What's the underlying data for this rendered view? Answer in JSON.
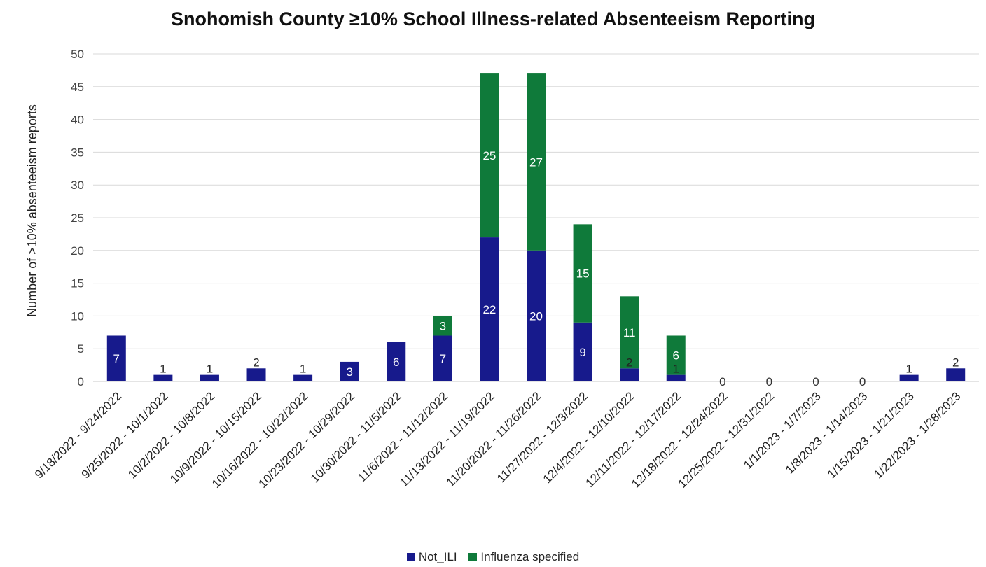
{
  "chart_data": {
    "type": "bar",
    "stacked": true,
    "title": "Snohomish County ≥10% School Illness-related Absenteeism Reporting",
    "xlabel": "",
    "ylabel": "Number of >10% absenteeism reports",
    "ylim": [
      0,
      50
    ],
    "ytick_step": 5,
    "grid": true,
    "legend_position": "bottom",
    "categories": [
      "9/18/2022 - 9/24/2022",
      "9/25/2022 - 10/1/2022",
      "10/2/2022 - 10/8/2022",
      "10/9/2022 - 10/15/2022",
      "10/16/2022 - 10/22/2022",
      "10/23/2022 - 10/29/2022",
      "10/30/2022 - 11/5/2022",
      "11/6/2022 - 11/12/2022",
      "11/13/2022 - 11/19/2022",
      "11/20/2022 - 11/26/2022",
      "11/27/2022 - 12/3/2022",
      "12/4/2022 - 12/10/2022",
      "12/11/2022 - 12/17/2022",
      "12/18/2022 - 12/24/2022",
      "12/25/2022 - 12/31/2022",
      "1/1/2023 - 1/7/2023",
      "1/8/2023 - 1/14/2023",
      "1/15/2023 - 1/21/2023",
      "1/22/2023 - 1/28/2023"
    ],
    "series": [
      {
        "name": "Not_ILI",
        "color": "#171a8c",
        "values": [
          7,
          1,
          1,
          2,
          1,
          3,
          6,
          7,
          22,
          20,
          9,
          2,
          1,
          0,
          0,
          0,
          0,
          1,
          2
        ]
      },
      {
        "name": "Influenza specified",
        "color": "#0f7a3a",
        "values": [
          null,
          null,
          null,
          null,
          null,
          null,
          null,
          3,
          25,
          27,
          15,
          11,
          6,
          0,
          0,
          0,
          0,
          null,
          null
        ]
      }
    ]
  }
}
